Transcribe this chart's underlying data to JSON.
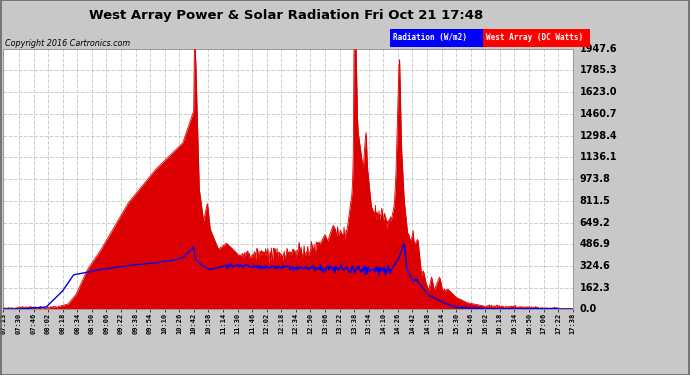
{
  "title": "West Array Power & Solar Radiation Fri Oct 21 17:48",
  "copyright": "Copyright 2016 Cartronics.com",
  "legend_radiation": "Radiation (W/m2)",
  "legend_west": "West Array (DC Watts)",
  "y_ticks": [
    0.0,
    162.3,
    324.6,
    486.9,
    649.2,
    811.5,
    973.8,
    1136.1,
    1298.4,
    1460.7,
    1623.0,
    1785.3,
    1947.6
  ],
  "y_max": 1947.6,
  "fig_bg_color": "#c8c8c8",
  "plot_bg_color": "#ffffff",
  "grid_color": "#cccccc",
  "grid_style": "--",
  "fill_color": "#dd0000",
  "line_color": "#0000ee",
  "title_color": "#000000",
  "x_labels": [
    "07:13",
    "07:30",
    "07:46",
    "08:02",
    "08:18",
    "08:34",
    "08:50",
    "09:06",
    "09:22",
    "09:38",
    "09:54",
    "10:10",
    "10:26",
    "10:42",
    "10:58",
    "11:14",
    "11:30",
    "11:46",
    "12:02",
    "12:18",
    "12:34",
    "12:50",
    "13:06",
    "13:22",
    "13:38",
    "13:54",
    "14:10",
    "14:26",
    "14:42",
    "14:58",
    "15:14",
    "15:30",
    "15:46",
    "16:02",
    "16:18",
    "16:34",
    "16:50",
    "17:06",
    "17:22",
    "17:38"
  ]
}
